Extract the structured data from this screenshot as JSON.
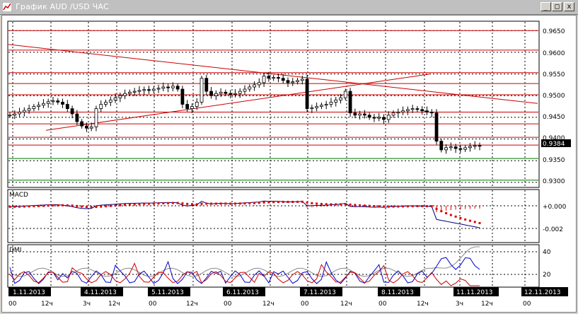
{
  "window": {
    "title": "График AUD /USD ЧАС",
    "min_glyph": "_",
    "max_glyph": "□",
    "close_glyph": "x",
    "title_bar_color": "#c0c0c0"
  },
  "price_panel": {
    "price_labels": [
      "0.9650",
      "0.9600",
      "0.9550",
      "0.9500",
      "0.9450",
      "0.9400",
      "0.9350",
      "0.9300"
    ],
    "current_price": "0.9384"
  },
  "macd_panel": {
    "title": "MACD",
    "labels": [
      "+0.000",
      "-0.002"
    ]
  },
  "dmi_panel": {
    "title": "DMI",
    "labels": [
      "40",
      "20"
    ]
  },
  "time_axis": {
    "dates": [
      "1.11.2013",
      "4.11.2013",
      "5.11.2013",
      "6.11.2013",
      "7.11.2013",
      "8.11.2013",
      "11.11.2013",
      "12.11.2013"
    ],
    "hours": [
      "00",
      "12ч",
      "3ч",
      "12ч",
      "00",
      "12ч",
      "00",
      "12ч",
      "00",
      "12ч",
      "00",
      "12ч",
      "3ч",
      "12ч",
      "00"
    ]
  },
  "colors": {
    "candle": "#000000",
    "hline_red": "#cc0000",
    "hline_green": "#007700",
    "macd_signal": "#dd0000",
    "adx": "#888888",
    "plus_di": "#0000cc",
    "minus_di": "#cc0000",
    "date_box": "#000000"
  },
  "chart_data": {
    "type": "line",
    "title": "График AUD /USD ЧАС",
    "ylim": [
      0.929,
      0.967
    ],
    "current_price": 0.9384,
    "horizontal_lines_red": [
      0.965,
      0.9605,
      0.9553,
      0.9528,
      0.9502,
      0.9462,
      0.9435,
      0.9404,
      0.9386
    ],
    "horizontal_lines_green": [
      0.9355,
      0.9305
    ],
    "trendlines": [
      {
        "from": [
          "1.11.2013 00",
          0.9618
        ],
        "to": [
          "11.11.2013 12ч",
          0.9482
        ]
      },
      {
        "from": [
          "1.11.2013 12ч",
          0.942
        ],
        "to": [
          "8.11.2013 12ч",
          0.955
        ]
      }
    ],
    "close_series": [
      0.9455,
      0.9458,
      0.9462,
      0.9466,
      0.947,
      0.9475,
      0.9478,
      0.9482,
      0.9486,
      0.9488,
      0.9485,
      0.948,
      0.947,
      0.9458,
      0.944,
      0.943,
      0.9425,
      0.9428,
      0.947,
      0.948,
      0.9485,
      0.949,
      0.9495,
      0.95,
      0.9505,
      0.9508,
      0.951,
      0.9512,
      0.9514,
      0.9512,
      0.9515,
      0.9517,
      0.952,
      0.9518,
      0.9522,
      0.9515,
      0.948,
      0.947,
      0.9475,
      0.9485,
      0.954,
      0.951,
      0.95,
      0.9505,
      0.9508,
      0.9505,
      0.9503,
      0.9505,
      0.951,
      0.9515,
      0.952,
      0.9525,
      0.953,
      0.9545,
      0.954,
      0.9542,
      0.954,
      0.9535,
      0.953,
      0.9532,
      0.9535,
      0.9538,
      0.947,
      0.9472,
      0.9475,
      0.9478,
      0.948,
      0.9485,
      0.949,
      0.9495,
      0.951,
      0.946,
      0.9455,
      0.9458,
      0.9455,
      0.945,
      0.9448,
      0.945,
      0.9445,
      0.9455,
      0.946,
      0.9462,
      0.9465,
      0.9468,
      0.947,
      0.9468,
      0.9465,
      0.9462,
      0.946,
      0.9395,
      0.9375,
      0.938,
      0.9382,
      0.9378,
      0.9376,
      0.938,
      0.9383,
      0.9385,
      0.9384
    ]
  }
}
